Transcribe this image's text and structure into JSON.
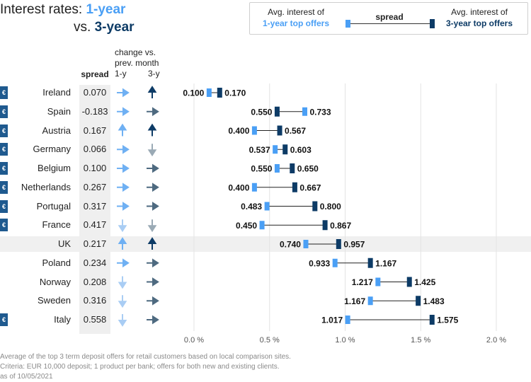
{
  "header": {
    "title_prefix": "Interest rates: ",
    "title_1y": "1-year",
    "title_vs": "vs. ",
    "title_3y": "3-year"
  },
  "legend": {
    "left_line1": "Avg. interest of",
    "left_line2": "1-year top offers",
    "middle": "spread",
    "right_line1": "Avg. interest of",
    "right_line2": "3-year top offers"
  },
  "columns": {
    "spread": "spread",
    "change_line1": "change vs.",
    "change_line2": "prev. month",
    "col_1y": "1-y",
    "col_3y": "3-y"
  },
  "colors": {
    "one_year": "#4a9ff5",
    "three_year": "#0d3b66",
    "arrow_1y": "#6fb0f3",
    "arrow_3y": "#4e6a80",
    "arrow_down_1y": "#a9cdf4",
    "arrow_down_3y": "#9aaab5"
  },
  "chart_data": {
    "type": "dumbbell",
    "x_ticks": [
      "0.0 %",
      "0.5 %",
      "1.0 %",
      "1.5 %",
      "2.0 %"
    ],
    "x_tick_values": [
      0,
      0.5,
      1.0,
      1.5,
      2.0
    ],
    "xlim": [
      0,
      2.0
    ],
    "grid": true,
    "rows": [
      {
        "country": "Ireland",
        "euro": true,
        "spread": "0.070",
        "chg_1y": "right",
        "chg_3y": "up",
        "v1": 0.1,
        "v3": 0.17,
        "l1": "0.100",
        "l3": "0.170"
      },
      {
        "country": "Spain",
        "euro": true,
        "spread": "-0.183",
        "chg_1y": "right",
        "chg_3y": "right",
        "v1": 0.733,
        "v3": 0.55,
        "l1": "0.733",
        "l3": "0.550"
      },
      {
        "country": "Austria",
        "euro": true,
        "spread": "0.167",
        "chg_1y": "up",
        "chg_3y": "up",
        "v1": 0.4,
        "v3": 0.567,
        "l1": "0.400",
        "l3": "0.567"
      },
      {
        "country": "Germany",
        "euro": true,
        "spread": "0.066",
        "chg_1y": "right",
        "chg_3y": "down",
        "v1": 0.537,
        "v3": 0.603,
        "l1": "0.537",
        "l3": "0.603"
      },
      {
        "country": "Belgium",
        "euro": true,
        "spread": "0.100",
        "chg_1y": "right",
        "chg_3y": "right",
        "v1": 0.55,
        "v3": 0.65,
        "l1": "0.550",
        "l3": "0.650"
      },
      {
        "country": "Netherlands",
        "euro": true,
        "spread": "0.267",
        "chg_1y": "right",
        "chg_3y": "right",
        "v1": 0.4,
        "v3": 0.667,
        "l1": "0.400",
        "l3": "0.667"
      },
      {
        "country": "Portugal",
        "euro": true,
        "spread": "0.317",
        "chg_1y": "right",
        "chg_3y": "right",
        "v1": 0.483,
        "v3": 0.8,
        "l1": "0.483",
        "l3": "0.800"
      },
      {
        "country": "France",
        "euro": true,
        "spread": "0.417",
        "chg_1y": "down",
        "chg_3y": "down",
        "v1": 0.45,
        "v3": 0.867,
        "l1": "0.450",
        "l3": "0.867"
      },
      {
        "country": "UK",
        "euro": false,
        "spread": "0.217",
        "chg_1y": "up",
        "chg_3y": "up",
        "v1": 0.74,
        "v3": 0.957,
        "l1": "0.740",
        "l3": "0.957"
      },
      {
        "country": "Poland",
        "euro": false,
        "spread": "0.234",
        "chg_1y": "right",
        "chg_3y": "right",
        "v1": 0.933,
        "v3": 1.167,
        "l1": "0.933",
        "l3": "1.167"
      },
      {
        "country": "Norway",
        "euro": false,
        "spread": "0.208",
        "chg_1y": "down",
        "chg_3y": "right",
        "v1": 1.217,
        "v3": 1.425,
        "l1": "1.217",
        "l3": "1.425"
      },
      {
        "country": "Sweden",
        "euro": false,
        "spread": "0.316",
        "chg_1y": "down",
        "chg_3y": "right",
        "v1": 1.167,
        "v3": 1.483,
        "l1": "1.167",
        "l3": "1.483"
      },
      {
        "country": "Italy",
        "euro": true,
        "spread": "0.558",
        "chg_1y": "down",
        "chg_3y": "right",
        "v1": 1.017,
        "v3": 1.575,
        "l1": "1.017",
        "l3": "1.575"
      }
    ]
  },
  "footnotes": {
    "line1": "Average of the top 3 term deposit offers for retail customers based on local comparison sites.",
    "line2": "Criteria: EUR 10,000 deposit; 1 product per bank; offers for both new and existing clients.",
    "line3": "as of 10/05/2021"
  }
}
